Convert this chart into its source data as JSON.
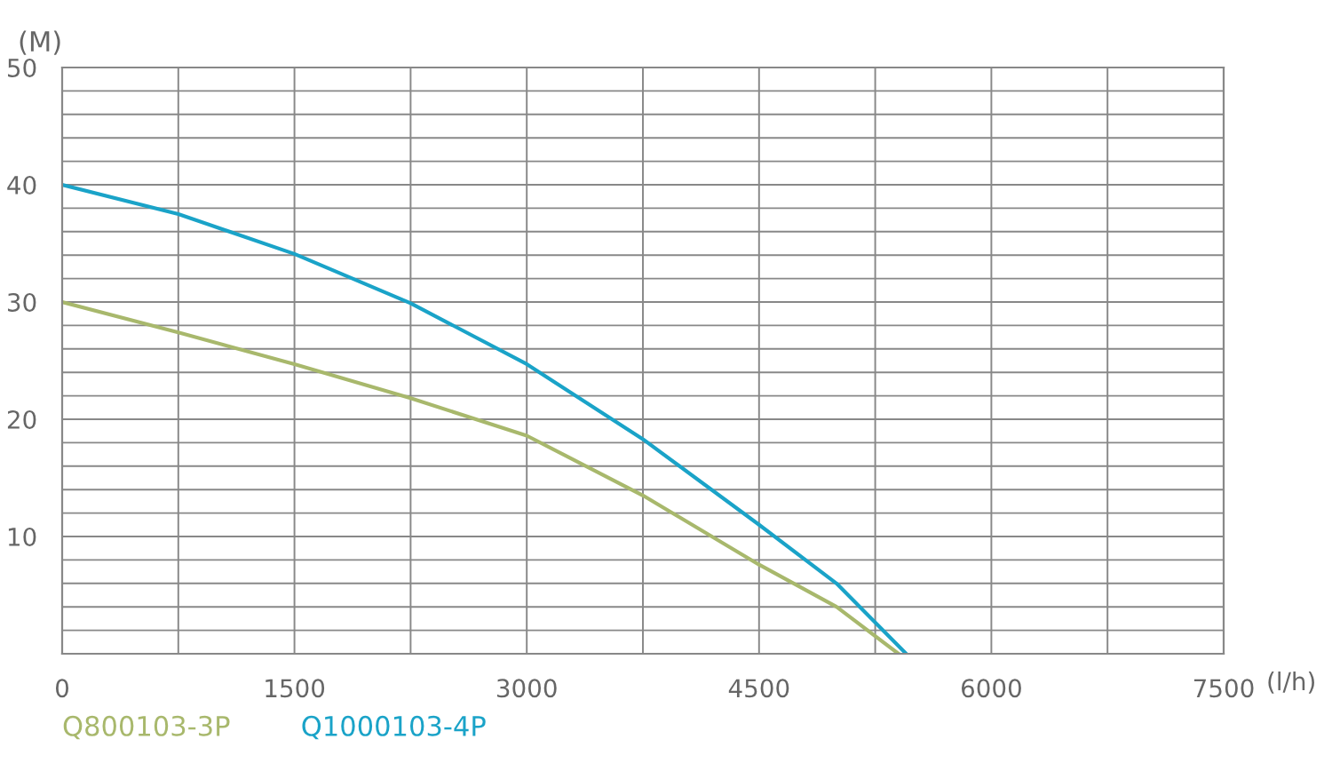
{
  "chart_data": {
    "type": "line",
    "xlabel": "(l/h)",
    "ylabel": "(M)",
    "xlim": [
      0,
      7500
    ],
    "ylim": [
      0,
      50
    ],
    "xticks": [
      0,
      {
        "value": 750,
        "label": null
      },
      1500,
      {
        "value": 2250,
        "label": null
      },
      3000,
      {
        "value": 3750,
        "label": null
      },
      4500,
      {
        "value": 5250,
        "label": null
      },
      6000,
      {
        "value": 6750,
        "label": null
      },
      7500
    ],
    "yticks": [
      {
        "value": 0,
        "label": null
      },
      {
        "value": 2,
        "label": null
      },
      {
        "value": 4,
        "label": null
      },
      {
        "value": 6,
        "label": null
      },
      {
        "value": 8,
        "label": null
      },
      10,
      {
        "value": 12,
        "label": null
      },
      {
        "value": 14,
        "label": null
      },
      {
        "value": 16,
        "label": null
      },
      {
        "value": 18,
        "label": null
      },
      20,
      {
        "value": 22,
        "label": null
      },
      {
        "value": 24,
        "label": null
      },
      {
        "value": 26,
        "label": null
      },
      {
        "value": 28,
        "label": null
      },
      30,
      {
        "value": 32,
        "label": null
      },
      {
        "value": 34,
        "label": null
      },
      {
        "value": 36,
        "label": null
      },
      {
        "value": 38,
        "label": null
      },
      40,
      {
        "value": 42,
        "label": null
      },
      {
        "value": 44,
        "label": null
      },
      {
        "value": 46,
        "label": null
      },
      {
        "value": 48,
        "label": null
      },
      50
    ],
    "grid": true,
    "legend": "bottom left",
    "marker": "none",
    "line_style": "solid",
    "series": [
      {
        "name": "Q800103-3P",
        "color": "#a8b86c",
        "x": [
          0,
          750,
          1500,
          2250,
          3000,
          3750,
          4500,
          5000,
          5400
        ],
        "values": [
          30,
          27.4,
          24.7,
          21.8,
          18.6,
          13.5,
          7.6,
          4,
          0
        ]
      },
      {
        "name": "Q1000103-4P",
        "color": "#1aa3c8",
        "x": [
          0,
          750,
          1500,
          2250,
          3000,
          3750,
          4500,
          5000,
          5450
        ],
        "values": [
          40,
          37.5,
          34.1,
          29.9,
          24.7,
          18.3,
          11,
          6,
          0
        ]
      }
    ]
  }
}
